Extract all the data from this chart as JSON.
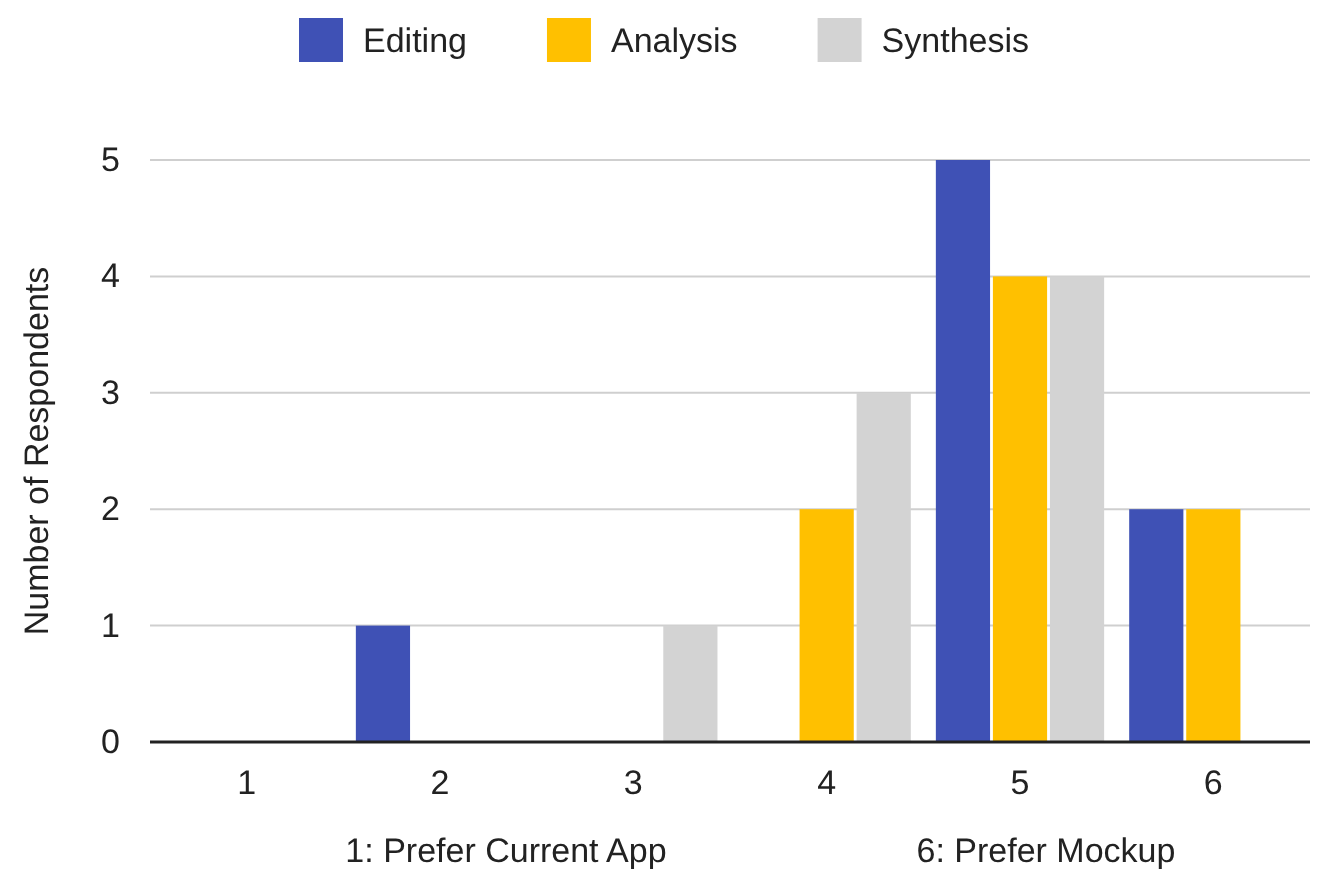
{
  "chart_data": {
    "type": "bar",
    "ylabel": "Number of Respondents",
    "categories": [
      "1",
      "2",
      "3",
      "4",
      "5",
      "6"
    ],
    "series": [
      {
        "name": "Editing",
        "color": "#3f51b5",
        "values": [
          0,
          1,
          0,
          0,
          5,
          2
        ]
      },
      {
        "name": "Analysis",
        "color": "#ffc000",
        "values": [
          0,
          0,
          0,
          2,
          4,
          2
        ]
      },
      {
        "name": "Synthesis",
        "color": "#d3d3d3",
        "values": [
          0,
          0,
          1,
          3,
          4,
          0
        ]
      }
    ],
    "ylim": [
      0,
      5
    ],
    "yticks": [
      0,
      1,
      2,
      3,
      4,
      5
    ],
    "grid": "y",
    "legend": "top",
    "annotations": [
      "1: Prefer Current App",
      "6: Prefer Mockup"
    ]
  }
}
